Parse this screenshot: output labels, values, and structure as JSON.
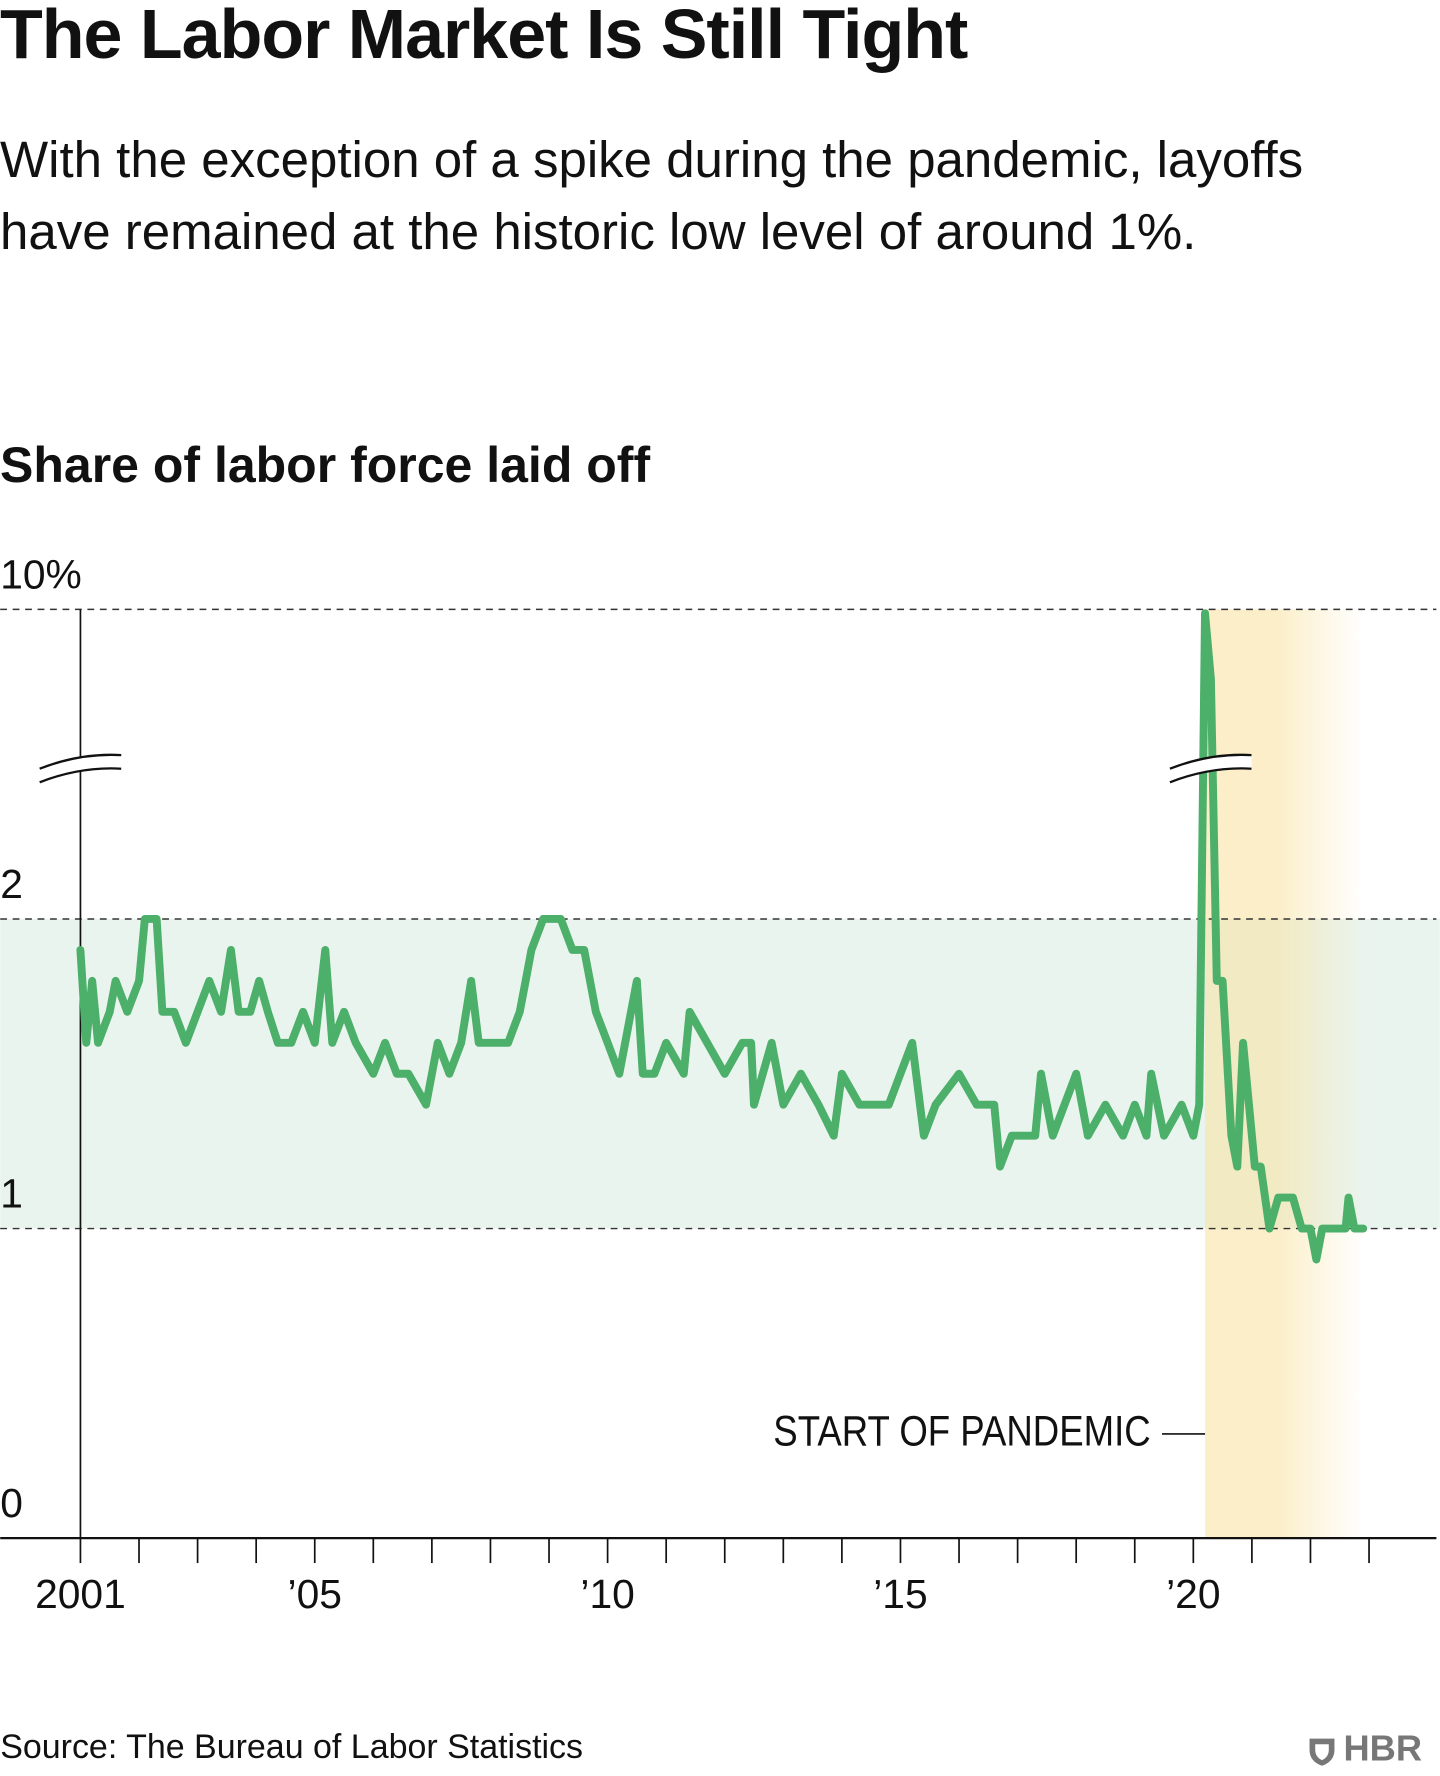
{
  "chart_data": {
    "type": "line",
    "title": "The Labor Market Is Still Tight",
    "subtitle": "With the exception of a spike during the pandemic, layoffs have remained at the historic low level of around 1%.",
    "chart_title": "Share of labor force laid off",
    "source": "Source: The Bureau of Labor Statistics",
    "logo": "HBR",
    "annotation": {
      "label": "START OF PANDEMIC",
      "x": 2020.2
    },
    "band": [
      1,
      2
    ],
    "y_break": true,
    "xlim": [
      1999.63,
      2024.15
    ],
    "ylim": [
      0,
      10
    ],
    "yticks": [
      0,
      1,
      2,
      {
        "value": 10,
        "label": "10%"
      }
    ],
    "xticks": [
      {
        "value": 2001,
        "label": "2001"
      },
      {
        "value": 2005,
        "label": "’05"
      },
      {
        "value": 2010,
        "label": "’10"
      },
      {
        "value": 2015,
        "label": "’15"
      },
      {
        "value": 2020,
        "label": "’20"
      }
    ],
    "xminorticks": [
      2002,
      2003,
      2004,
      2006,
      2007,
      2008,
      2009,
      2011,
      2012,
      2013,
      2014,
      2016,
      2017,
      2018,
      2019,
      2021,
      2022,
      2023
    ],
    "series": [
      {
        "color": "#4caf6a",
        "x": [
          2001.0,
          2001.1,
          2001.2,
          2001.3,
          2001.5,
          2001.6,
          2001.8,
          2002.0,
          2002.1,
          2002.3,
          2002.4,
          2002.6,
          2002.8,
          2003.0,
          2003.2,
          2003.4,
          2003.57,
          2003.7,
          2003.9,
          2004.05,
          2004.2,
          2004.37,
          2004.6,
          2004.8,
          2005.0,
          2005.18,
          2005.3,
          2005.5,
          2005.7,
          2006.0,
          2006.2,
          2006.4,
          2006.6,
          2006.9,
          2007.1,
          2007.3,
          2007.5,
          2007.67,
          2007.8,
          2008.0,
          2008.3,
          2008.5,
          2008.6,
          2008.7,
          2008.9,
          2009.2,
          2009.4,
          2009.6,
          2009.8,
          2010.0,
          2010.2,
          2010.5,
          2010.6,
          2010.8,
          2011.0,
          2011.3,
          2011.4,
          2011.7,
          2012.0,
          2012.3,
          2012.45,
          2012.5,
          2012.8,
          2013.0,
          2013.3,
          2013.6,
          2013.86,
          2014.0,
          2014.3,
          2014.8,
          2015.0,
          2015.2,
          2015.4,
          2015.6,
          2016.0,
          2016.3,
          2016.6,
          2016.7,
          2016.9,
          2017.3,
          2017.4,
          2017.6,
          2018.0,
          2018.2,
          2018.5,
          2018.8,
          2019.0,
          2019.2,
          2019.28,
          2019.5,
          2019.8,
          2020.0,
          2020.1,
          2020.2,
          2020.3,
          2020.4,
          2020.5,
          2020.65,
          2020.75,
          2020.85,
          2020.95,
          2021.05,
          2021.15,
          2021.3,
          2021.45,
          2021.7,
          2021.85,
          2022.0,
          2022.1,
          2022.2,
          2022.6,
          2022.65,
          2022.75,
          2022.9
        ],
        "values": [
          1.9,
          1.6,
          1.8,
          1.6,
          1.7,
          1.8,
          1.7,
          1.8,
          2.0,
          2.0,
          1.7,
          1.7,
          1.6,
          1.7,
          1.8,
          1.7,
          1.9,
          1.7,
          1.7,
          1.8,
          1.7,
          1.6,
          1.6,
          1.7,
          1.6,
          1.9,
          1.6,
          1.7,
          1.6,
          1.5,
          1.6,
          1.5,
          1.5,
          1.4,
          1.6,
          1.5,
          1.6,
          1.8,
          1.6,
          1.6,
          1.6,
          1.7,
          1.8,
          1.9,
          2.0,
          2.0,
          1.9,
          1.9,
          1.7,
          1.6,
          1.5,
          1.8,
          1.5,
          1.5,
          1.6,
          1.5,
          1.7,
          1.6,
          1.5,
          1.6,
          1.6,
          1.4,
          1.6,
          1.4,
          1.5,
          1.4,
          1.3,
          1.5,
          1.4,
          1.4,
          1.5,
          1.6,
          1.3,
          1.4,
          1.5,
          1.4,
          1.4,
          1.2,
          1.3,
          1.3,
          1.5,
          1.3,
          1.5,
          1.3,
          1.4,
          1.3,
          1.4,
          1.3,
          1.5,
          1.3,
          1.4,
          1.3,
          1.4,
          9.9,
          8.2,
          1.8,
          1.8,
          1.3,
          1.2,
          1.6,
          1.4,
          1.2,
          1.2,
          1.0,
          1.1,
          1.1,
          1.0,
          1.0,
          0.9,
          1.0,
          1.0,
          1.1,
          1.0,
          1.0
        ]
      }
    ]
  }
}
